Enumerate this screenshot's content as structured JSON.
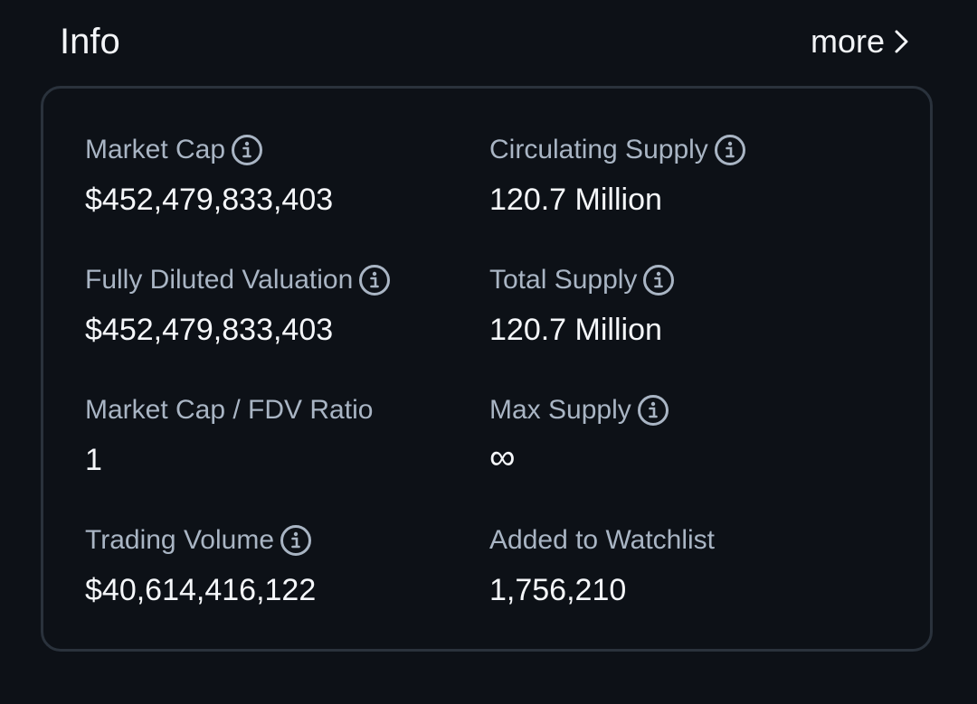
{
  "header": {
    "title": "Info",
    "more_label": "more"
  },
  "stats": [
    {
      "label": "Market Cap",
      "value": "$452,479,833,403",
      "has_info": true
    },
    {
      "label": "Circulating Supply",
      "value": "120.7 Million",
      "has_info": true
    },
    {
      "label": "Fully Diluted Valuation",
      "value": "$452,479,833,403",
      "has_info": true
    },
    {
      "label": "Total Supply",
      "value": "120.7 Million",
      "has_info": true
    },
    {
      "label": "Market Cap / FDV Ratio",
      "value": "1",
      "has_info": false
    },
    {
      "label": "Max Supply",
      "value": "∞",
      "has_info": true
    },
    {
      "label": "Trading Volume",
      "value": "$40,614,416,122",
      "has_info": true
    },
    {
      "label": "Added to Watchlist",
      "value": "1,756,210",
      "has_info": false
    }
  ],
  "icons": {
    "info": "info-circle-icon",
    "more": "chevron-right-icon"
  },
  "colors": {
    "background": "#0d1117",
    "card_border": "#2a323c",
    "label": "#a9b5c4",
    "value": "#f5f7fa"
  }
}
